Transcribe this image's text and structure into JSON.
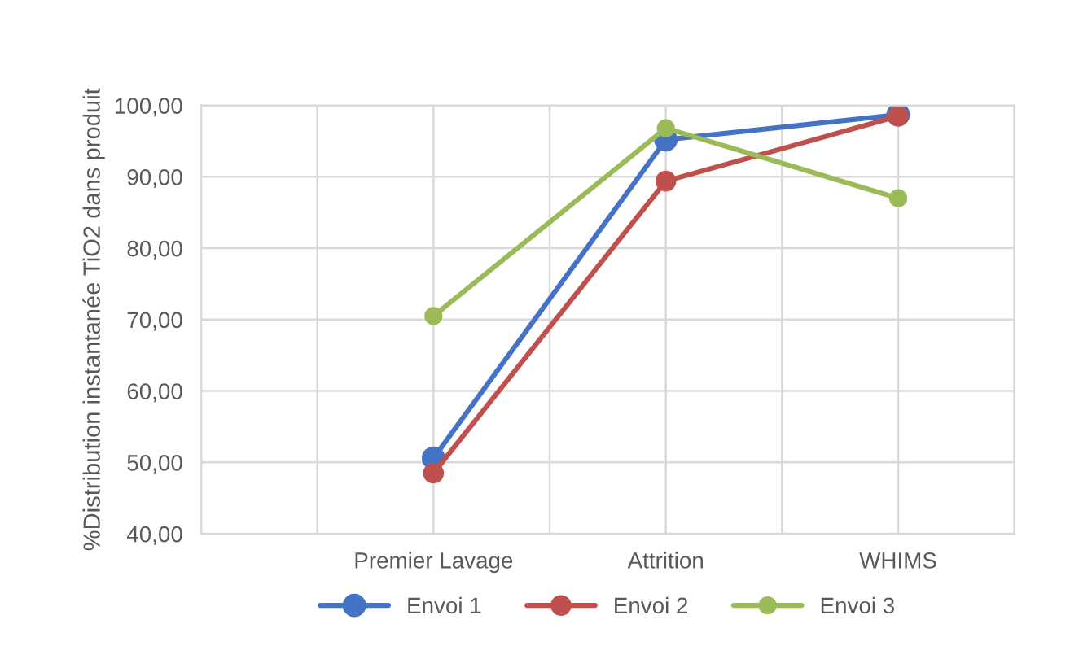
{
  "chart_data": {
    "type": "line",
    "ylabel": "%Distribution instantanée TiO2 dans produit",
    "categories": [
      null,
      null,
      "Premier Lavage",
      null,
      "Attrition",
      null,
      "WHIMS",
      null
    ],
    "series": [
      {
        "name": "Envoi 1",
        "color": "#4472c4",
        "values": [
          null,
          null,
          50.6,
          null,
          95.2,
          null,
          98.7,
          null
        ]
      },
      {
        "name": "Envoi 2",
        "color": "#c0504d",
        "values": [
          null,
          null,
          48.5,
          null,
          89.4,
          null,
          98.5,
          null
        ]
      },
      {
        "name": "Envoi 3",
        "color": "#9bbb59",
        "values": [
          null,
          null,
          70.5,
          null,
          96.8,
          null,
          87.0,
          null
        ]
      }
    ],
    "ylim": [
      40,
      100
    ],
    "yticks": [
      {
        "value": 40,
        "label": "40,00"
      },
      {
        "value": 50,
        "label": "50,00"
      },
      {
        "value": 60,
        "label": "60,00"
      },
      {
        "value": 70,
        "label": "70,00"
      },
      {
        "value": 80,
        "label": "80,00"
      },
      {
        "value": 90,
        "label": "90,00"
      },
      {
        "value": 100,
        "label": "100,00"
      }
    ],
    "grid": true,
    "legend": "bottom",
    "marker": "circle",
    "line_style": "solid"
  }
}
